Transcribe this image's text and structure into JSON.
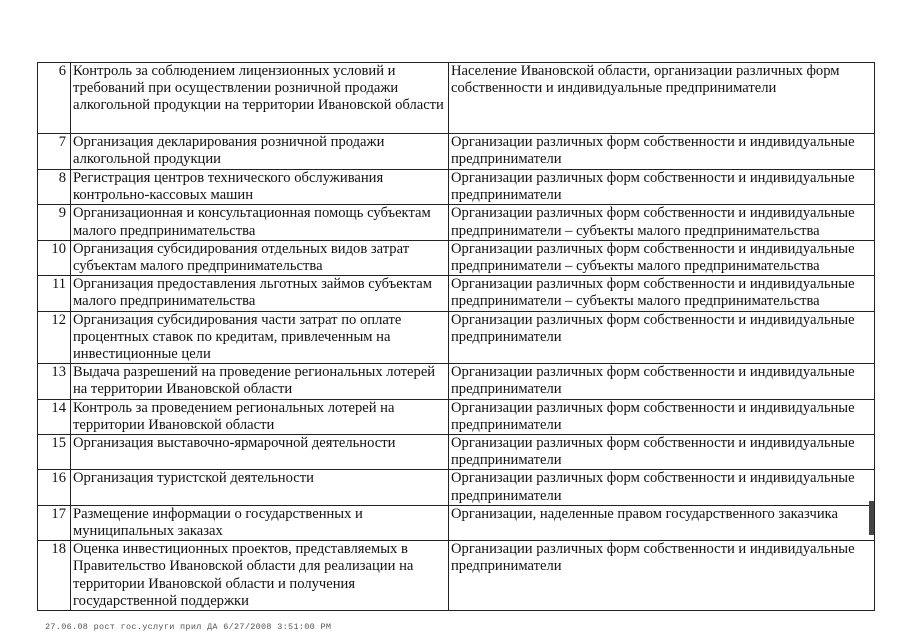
{
  "rows": [
    {
      "num": "6",
      "service": "Контроль за соблюдением лицензионных условий и требований при осуществлении розничной продажи алкогольной продукции на территории Ивановской области",
      "recipients": "Население Ивановской области, организации различных форм собственности и индивидуальные предприниматели"
    },
    {
      "num": "7",
      "service": "Организация декларирования розничной продажи алкогольной продукции",
      "recipients": "Организации различных форм собственности и индивидуальные предприниматели"
    },
    {
      "num": "8",
      "service": "Регистрация центров технического обслуживания контрольно-кассовых машин",
      "recipients": "Организации различных форм собственности и индивидуальные предприниматели"
    },
    {
      "num": "9",
      "service": "Организационная и консультационная помощь субъектам малого предпринимательства",
      "recipients": "Организации различных форм собственности и индивидуальные предприниматели – субъекты малого предпринимательства"
    },
    {
      "num": "10",
      "service": "Организация субсидирования отдельных видов затрат субъектам малого предпринимательства",
      "recipients": "Организации различных форм собственности и индивидуальные предприниматели – субъекты малого предпринимательства"
    },
    {
      "num": "11",
      "service": "Организация предоставления льготных займов субъектам малого предпринимательства",
      "recipients": "Организации различных форм собственности и индивидуальные предприниматели – субъекты малого предпринимательства"
    },
    {
      "num": "12",
      "service": "Организация субсидирования части затрат по оплате процентных ставок по кредитам, привлеченным на инвестиционные цели",
      "recipients": "Организации различных форм собственности и индивидуальные предприниматели"
    },
    {
      "num": "13",
      "service": "Выдача разрешений на проведение региональных лотерей на территории Ивановской области",
      "recipients": "Организации различных форм собственности и индивидуальные предприниматели"
    },
    {
      "num": "14",
      "service": "Контроль за проведением региональных лотерей  на территории Ивановской области",
      "recipients": "Организации различных форм собственности и индивидуальные предприниматели"
    },
    {
      "num": "15",
      "service": "Организация выставочно-ярмарочной деятельности",
      "recipients": "Организации различных форм собственности и индивидуальные предприниматели"
    },
    {
      "num": "16",
      "service": "Организация туристской деятельности",
      "recipients": "Организации различных форм собственности и индивидуальные предприниматели"
    },
    {
      "num": "17",
      "service": "Размещение информации о государственных и муниципальных заказах",
      "recipients": "Организации, наделенные правом государственного заказчика"
    },
    {
      "num": "18",
      "service": "Оценка инвестиционных проектов, представляемых в Правительство Ивановской области для реализации на территории Ивановской области и получения государственной поддержки",
      "recipients": "Организации различных форм собственности и индивидуальные предприниматели"
    }
  ],
  "footer": "27.06.08  рост гос.услуги прил  ДА 6/27/2008 3:51:00 PM"
}
